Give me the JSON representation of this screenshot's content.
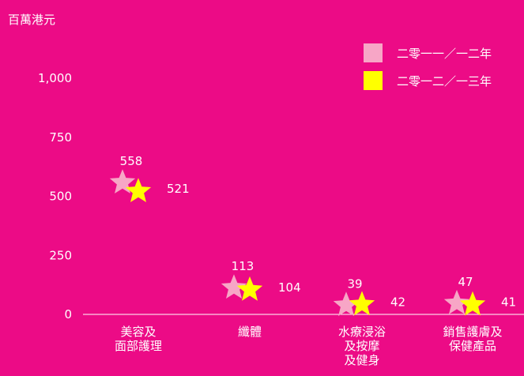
{
  "chart_data": {
    "type": "scatter",
    "unit_label": "百萬港元",
    "y_ticks": [
      "1,000",
      "750",
      "500",
      "250",
      "0"
    ],
    "ylim": [
      0,
      1000
    ],
    "grid": false,
    "legend_position": "top-right",
    "categories": [
      [
        "美容及",
        "面部護理"
      ],
      [
        "纖體"
      ],
      [
        "水療浸浴",
        "及按摩",
        "及健身"
      ],
      [
        "銷售護膚及",
        "保健產品"
      ]
    ],
    "series": [
      {
        "name": "二零一一／一二年",
        "color": "#f7a6c6",
        "values": [
          558,
          113,
          39,
          47
        ]
      },
      {
        "name": "二零一二／一三年",
        "color": "#ffff00",
        "values": [
          521,
          104,
          42,
          41
        ]
      }
    ]
  }
}
